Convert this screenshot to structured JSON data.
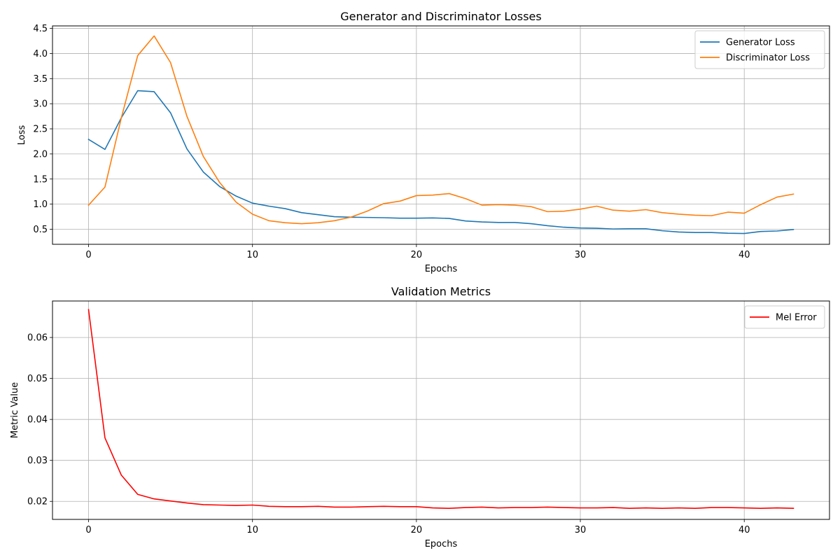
{
  "chart_data": [
    {
      "type": "line",
      "title": "Generator and Discriminator Losses",
      "xlabel": "Epochs",
      "ylabel": "Loss",
      "xlim": [
        -2.2,
        45.2
      ],
      "ylim": [
        0.2,
        4.55
      ],
      "xticks": [
        0,
        10,
        20,
        30,
        40
      ],
      "yticks": [
        0.5,
        1.0,
        1.5,
        2.0,
        2.5,
        3.0,
        3.5,
        4.0,
        4.5
      ],
      "ytick_labels": [
        "0.5",
        "1.0",
        "1.5",
        "2.0",
        "2.5",
        "3.0",
        "3.5",
        "4.0",
        "4.5"
      ],
      "grid": true,
      "legend": "top-right",
      "series": [
        {
          "name": "Generator Loss",
          "color": "#1f77b4",
          "x": [
            0,
            1,
            2,
            3,
            4,
            5,
            6,
            7,
            8,
            9,
            10,
            11,
            12,
            13,
            14,
            15,
            16,
            17,
            18,
            19,
            20,
            21,
            22,
            23,
            24,
            25,
            26,
            27,
            28,
            29,
            30,
            31,
            32,
            33,
            34,
            35,
            36,
            37,
            38,
            39,
            40,
            41,
            42,
            43
          ],
          "values": [
            2.29,
            2.09,
            2.72,
            3.26,
            3.24,
            2.82,
            2.1,
            1.64,
            1.35,
            1.16,
            1.02,
            0.96,
            0.91,
            0.83,
            0.79,
            0.75,
            0.74,
            0.735,
            0.73,
            0.72,
            0.72,
            0.725,
            0.715,
            0.665,
            0.645,
            0.635,
            0.635,
            0.61,
            0.57,
            0.54,
            0.525,
            0.52,
            0.505,
            0.51,
            0.51,
            0.47,
            0.445,
            0.435,
            0.435,
            0.42,
            0.415,
            0.455,
            0.465,
            0.495
          ]
        },
        {
          "name": "Discriminator Loss",
          "color": "#ff7f0e",
          "x": [
            0,
            1,
            2,
            3,
            4,
            5,
            6,
            7,
            8,
            9,
            10,
            11,
            12,
            13,
            14,
            15,
            16,
            17,
            18,
            19,
            20,
            21,
            22,
            23,
            24,
            25,
            26,
            27,
            28,
            29,
            30,
            31,
            32,
            33,
            34,
            35,
            36,
            37,
            38,
            39,
            40,
            41,
            42,
            43
          ],
          "values": [
            0.98,
            1.34,
            2.72,
            3.96,
            4.35,
            3.82,
            2.75,
            1.95,
            1.43,
            1.04,
            0.8,
            0.67,
            0.63,
            0.61,
            0.63,
            0.67,
            0.74,
            0.86,
            1.01,
            1.06,
            1.17,
            1.18,
            1.21,
            1.11,
            0.98,
            0.99,
            0.98,
            0.95,
            0.85,
            0.86,
            0.9,
            0.96,
            0.88,
            0.86,
            0.89,
            0.83,
            0.8,
            0.78,
            0.77,
            0.84,
            0.82,
            0.99,
            1.14,
            1.2
          ]
        }
      ]
    },
    {
      "type": "line",
      "title": "Validation Metrics",
      "xlabel": "Epochs",
      "ylabel": "Metric Value",
      "xlim": [
        -2.2,
        45.2
      ],
      "ylim": [
        0.0156,
        0.0689
      ],
      "xticks": [
        0,
        10,
        20,
        30,
        40
      ],
      "yticks": [
        0.02,
        0.03,
        0.04,
        0.05,
        0.06
      ],
      "ytick_labels": [
        "0.02",
        "0.03",
        "0.04",
        "0.05",
        "0.06"
      ],
      "grid": true,
      "legend": "top-right",
      "series": [
        {
          "name": "Mel Error",
          "color": "#ff0000",
          "x": [
            0,
            1,
            2,
            3,
            4,
            5,
            6,
            7,
            8,
            9,
            10,
            11,
            12,
            13,
            14,
            15,
            16,
            17,
            18,
            19,
            20,
            21,
            22,
            23,
            24,
            25,
            26,
            27,
            28,
            29,
            30,
            31,
            32,
            33,
            34,
            35,
            36,
            37,
            38,
            39,
            40,
            41,
            42,
            43
          ],
          "values": [
            0.0668,
            0.0355,
            0.0264,
            0.0217,
            0.0206,
            0.0201,
            0.0196,
            0.0192,
            0.0191,
            0.019,
            0.0191,
            0.0188,
            0.0187,
            0.0187,
            0.0188,
            0.0186,
            0.0186,
            0.0187,
            0.0188,
            0.0187,
            0.0187,
            0.0184,
            0.0183,
            0.0185,
            0.0186,
            0.0184,
            0.0185,
            0.0185,
            0.0186,
            0.0185,
            0.0184,
            0.0184,
            0.0185,
            0.0183,
            0.0184,
            0.0183,
            0.0184,
            0.0183,
            0.0185,
            0.0185,
            0.0184,
            0.0183,
            0.0184,
            0.0183
          ]
        }
      ]
    }
  ]
}
